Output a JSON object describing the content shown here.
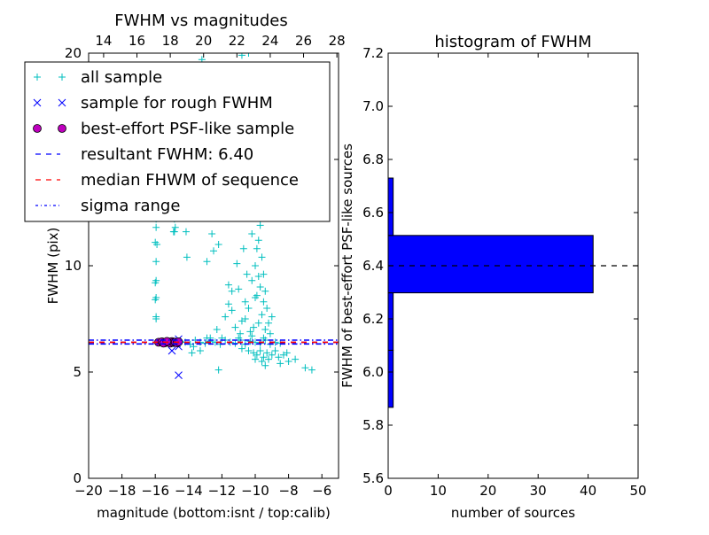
{
  "chart_data": [
    {
      "type": "scatter",
      "title": "FWHM vs magnitudes",
      "xlabel": "magnitude (bottom:isnt / top:calib)",
      "ylabel": "FWHM (pix)",
      "xlim": [
        -20,
        -5
      ],
      "ylim": [
        0,
        20
      ],
      "xticks": [
        "−20",
        "−18",
        "−16",
        "−14",
        "−12",
        "−10",
        "−8",
        "−6"
      ],
      "xtick_values": [
        -20,
        -18,
        -16,
        -14,
        -12,
        -10,
        -8,
        -6
      ],
      "top_xticks": [
        "14",
        "16",
        "18",
        "20",
        "22",
        "24",
        "26",
        "28"
      ],
      "top_xtick_values": [
        14,
        16,
        18,
        20,
        22,
        24,
        26,
        28
      ],
      "top_offset": 33.1,
      "yticks": [
        "0",
        "5",
        "10",
        "15",
        "20"
      ],
      "ytick_values": [
        0,
        5,
        10,
        15,
        20
      ],
      "legend_position": "upper-left",
      "legend": [
        "all sample",
        "sample for rough FWHM",
        "best-effort PSF-like sample",
        "resultant FWHM: 6.40",
        "median FHWM of sequence",
        "sigma range"
      ],
      "series": [
        {
          "name": "all sample",
          "marker": "+",
          "color": "#00bfbf",
          "points": [
            [
              -15.95,
              7.6
            ],
            [
              -15.95,
              7.5
            ],
            [
              -16.0,
              8.4
            ],
            [
              -15.95,
              8.5
            ],
            [
              -16.0,
              9.2
            ],
            [
              -15.95,
              9.3
            ],
            [
              -15.95,
              10.2
            ],
            [
              -15.9,
              11.0
            ],
            [
              -16.0,
              11.1
            ],
            [
              -15.95,
              11.8
            ],
            [
              -15.95,
              12.2
            ],
            [
              -15.9,
              12.5
            ],
            [
              -16.0,
              12.7
            ],
            [
              -15.95,
              13.5
            ],
            [
              -14.9,
              11.6
            ],
            [
              -14.85,
              11.6
            ],
            [
              -14.8,
              11.8
            ],
            [
              -14.85,
              12.2
            ],
            [
              -14.15,
              11.6
            ],
            [
              -14.1,
              10.4
            ],
            [
              -12.6,
              11.5
            ],
            [
              -12.2,
              11.0
            ],
            [
              -11.3,
              12.5
            ],
            [
              -12.9,
              10.2
            ],
            [
              -12.5,
              10.7
            ],
            [
              -10.8,
              19.9
            ],
            [
              -10.4,
              20.0
            ],
            [
              -13.2,
              19.7
            ],
            [
              -11.6,
              9.1
            ],
            [
              -11.4,
              8.8
            ],
            [
              -11.0,
              8.9
            ],
            [
              -11.4,
              7.9
            ],
            [
              -11.6,
              8.2
            ],
            [
              -10.6,
              7.5
            ],
            [
              -10.4,
              8.0
            ],
            [
              -10.2,
              9.3
            ],
            [
              -10.0,
              10.0
            ],
            [
              -9.9,
              10.8
            ],
            [
              -9.8,
              11.2
            ],
            [
              -9.7,
              11.9
            ],
            [
              -9.9,
              12.4
            ],
            [
              -9.6,
              10.4
            ],
            [
              -9.5,
              9.6
            ],
            [
              -9.4,
              8.8
            ],
            [
              -9.5,
              8.3
            ],
            [
              -9.3,
              8.0
            ],
            [
              -9.6,
              7.7
            ],
            [
              -9.8,
              7.3
            ],
            [
              -10.1,
              7.1
            ],
            [
              -10.3,
              6.9
            ],
            [
              -10.8,
              7.4
            ],
            [
              -11.2,
              7.1
            ],
            [
              -10.9,
              6.8
            ],
            [
              -9.2,
              7.3
            ],
            [
              -9.0,
              7.6
            ],
            [
              -9.4,
              7.0
            ],
            [
              -9.1,
              6.8
            ],
            [
              -10.0,
              8.5
            ],
            [
              -10.5,
              9.6
            ],
            [
              -10.7,
              10.8
            ],
            [
              -11.1,
              10.1
            ],
            [
              -10.2,
              11.5
            ],
            [
              -9.7,
              9.0
            ],
            [
              -9.9,
              8.6
            ],
            [
              -10.6,
              8.3
            ],
            [
              -11.8,
              7.6
            ],
            [
              -12.3,
              7.0
            ],
            [
              -12.7,
              6.6
            ],
            [
              -9.6,
              12.8
            ],
            [
              -9.8,
              13.0
            ],
            [
              -10.3,
              13.4
            ],
            [
              -9.9,
              13.8
            ],
            [
              -10.5,
              12.9
            ],
            [
              -9.8,
              9.5
            ],
            [
              -15.5,
              6.4
            ],
            [
              -15.0,
              6.35
            ],
            [
              -14.5,
              6.45
            ],
            [
              -14.2,
              6.4
            ],
            [
              -13.9,
              6.3
            ],
            [
              -13.6,
              6.5
            ],
            [
              -13.3,
              6.4
            ],
            [
              -13.0,
              6.35
            ],
            [
              -12.7,
              6.45
            ],
            [
              -12.4,
              6.4
            ],
            [
              -12.1,
              6.3
            ],
            [
              -11.8,
              6.5
            ],
            [
              -11.5,
              6.4
            ],
            [
              -11.2,
              6.35
            ],
            [
              -10.9,
              6.5
            ],
            [
              -10.6,
              6.3
            ],
            [
              -10.3,
              6.45
            ],
            [
              -10.0,
              6.4
            ],
            [
              -9.7,
              6.35
            ],
            [
              -9.4,
              6.5
            ],
            [
              -9.1,
              6.3
            ],
            [
              -8.8,
              6.4
            ],
            [
              -8.5,
              6.35
            ],
            [
              -13.7,
              6.2
            ],
            [
              -12.9,
              6.6
            ],
            [
              -12.0,
              6.6
            ],
            [
              -11.0,
              6.6
            ],
            [
              -10.2,
              6.7
            ],
            [
              -9.5,
              6.6
            ],
            [
              -13.3,
              6.0
            ],
            [
              -13.8,
              5.9
            ],
            [
              -10.8,
              6.1
            ],
            [
              -10.4,
              6.0
            ],
            [
              -10.1,
              5.9
            ],
            [
              -9.9,
              5.8
            ],
            [
              -9.7,
              6.0
            ],
            [
              -9.5,
              5.7
            ],
            [
              -9.3,
              5.9
            ],
            [
              -9.0,
              5.8
            ],
            [
              -8.8,
              6.0
            ],
            [
              -8.6,
              5.7
            ],
            [
              -10.0,
              5.6
            ],
            [
              -9.6,
              5.5
            ],
            [
              -9.2,
              5.6
            ],
            [
              -8.3,
              5.8
            ],
            [
              -8.0,
              5.5
            ],
            [
              -8.5,
              5.4
            ],
            [
              -9.4,
              5.3
            ],
            [
              -12.2,
              5.1
            ],
            [
              -7.0,
              5.2
            ],
            [
              -6.6,
              5.1
            ],
            [
              -7.6,
              5.6
            ],
            [
              -8.1,
              5.9
            ]
          ]
        },
        {
          "name": "sample for rough FWHM",
          "marker": "x",
          "color": "#0000ff",
          "points": [
            [
              -14.6,
              4.85
            ],
            [
              -15.0,
              6.0
            ],
            [
              -14.6,
              6.55
            ],
            [
              -14.6,
              6.2
            ],
            [
              -15.5,
              6.4
            ],
            [
              -15.0,
              6.45
            ],
            [
              -14.7,
              6.35
            ]
          ]
        },
        {
          "name": "best-effort PSF-like sample",
          "marker": "o",
          "color": "#bf00bf",
          "points": [
            [
              -15.8,
              6.4
            ],
            [
              -15.6,
              6.42
            ],
            [
              -15.4,
              6.38
            ],
            [
              -15.2,
              6.41
            ],
            [
              -15.1,
              6.36
            ],
            [
              -15.0,
              6.43
            ],
            [
              -14.9,
              6.39
            ],
            [
              -14.8,
              6.4
            ],
            [
              -14.7,
              6.37
            ],
            [
              -14.6,
              6.42
            ],
            [
              -15.5,
              6.36
            ],
            [
              -15.3,
              6.44
            ]
          ]
        }
      ],
      "lines": [
        {
          "name": "resultant FWHM: 6.40",
          "y": 6.4,
          "style": "dashed",
          "color": "#0000ff"
        },
        {
          "name": "median FHWM of sequence",
          "y": 6.4,
          "style": "dashed",
          "color": "#ff0000"
        },
        {
          "name": "sigma range",
          "y": 6.5,
          "style": "dashdot",
          "color": "#0000ff"
        },
        {
          "name": "sigma range",
          "y": 6.32,
          "style": "dashdot",
          "color": "#0000ff"
        }
      ]
    },
    {
      "type": "bar",
      "orientation": "horizontal",
      "title": "histogram of FWHM",
      "xlabel": "number of sources",
      "ylabel": "FWHM of best-effort PSF-like sources",
      "xlim": [
        0,
        50
      ],
      "ylim": [
        5.6,
        7.2
      ],
      "xticks": [
        "0",
        "10",
        "20",
        "30",
        "40",
        "50"
      ],
      "xtick_values": [
        0,
        10,
        20,
        30,
        40,
        50
      ],
      "yticks": [
        "5.6",
        "5.8",
        "6.0",
        "6.2",
        "6.4",
        "6.6",
        "6.8",
        "7.0",
        "7.2"
      ],
      "ytick_values": [
        5.6,
        5.8,
        6.0,
        6.2,
        6.4,
        6.6,
        6.8,
        7.0,
        7.2
      ],
      "bin_edges": [
        5.867,
        6.082,
        6.298,
        6.514,
        6.73
      ],
      "values": [
        1,
        1,
        41,
        1
      ],
      "bar_color": "#0000ff",
      "reference_line": 6.4
    }
  ]
}
